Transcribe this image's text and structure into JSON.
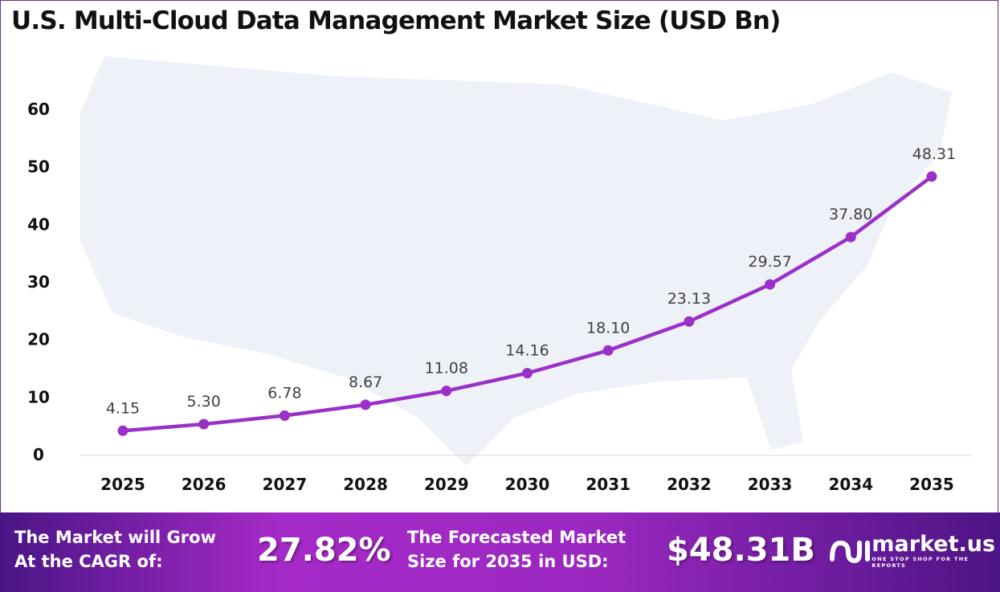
{
  "chart_data": {
    "type": "line",
    "title": "U.S. Multi-Cloud Data Management Market Size (USD Bn)",
    "categories": [
      "2025",
      "2026",
      "2027",
      "2028",
      "2029",
      "2030",
      "2031",
      "2032",
      "2033",
      "2034",
      "2035"
    ],
    "values": [
      4.15,
      5.3,
      6.78,
      8.67,
      11.08,
      14.16,
      18.1,
      23.13,
      29.57,
      37.8,
      48.31
    ],
    "labels": [
      "4.15",
      "5.30",
      "6.78",
      "8.67",
      "11.08",
      "14.16",
      "18.10",
      "23.13",
      "29.57",
      "37.80",
      "48.31"
    ],
    "ylim": [
      0,
      60
    ],
    "yticks": [
      "0",
      "10",
      "20",
      "30",
      "40",
      "50",
      "60"
    ],
    "grid": false,
    "line_color": "#9b30c8",
    "background": "U.S. map silhouette"
  },
  "footer": {
    "cagr_label_1": "The Market will Grow",
    "cagr_label_2": "At the CAGR of:",
    "cagr_value": "27.82%",
    "forecast_label_1": "The Forecasted Market",
    "forecast_label_2": "Size for 2035 in USD:",
    "forecast_value": "$48.31B",
    "logo_text": "market.us",
    "logo_tagline": "ONE STOP SHOP FOR THE REPORTS"
  }
}
